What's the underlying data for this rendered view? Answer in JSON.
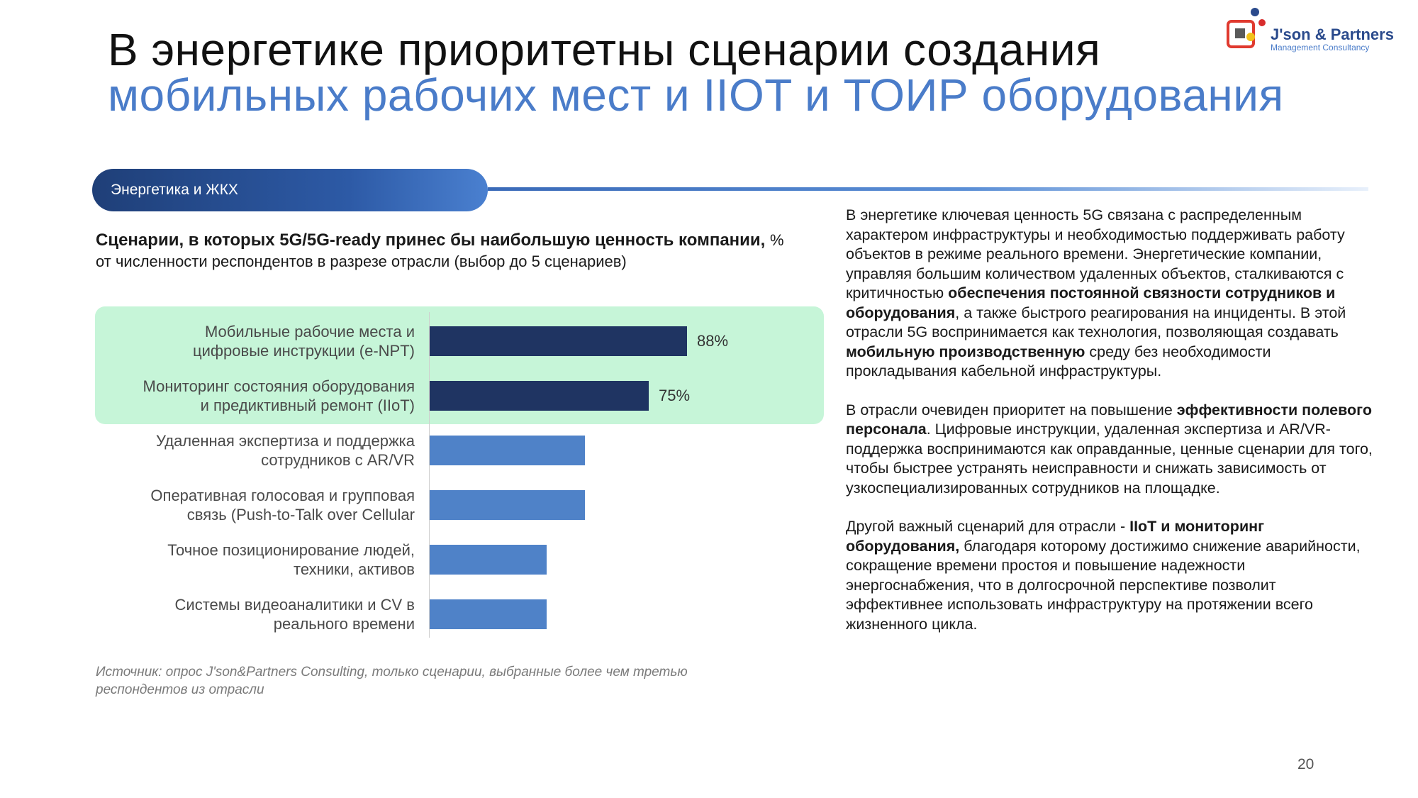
{
  "slide": {
    "title_line1": "В энергетике приоритетны сценарии создания",
    "title_line2": "мобильных рабочих мест и IIOT и ТОИР оборудования",
    "logo": {
      "name": "J'son & Partners",
      "subtitle": "Management Consultancy",
      "colors": {
        "square": "#e03a2f",
        "dot_blue": "#2a4a8c",
        "dot_yellow": "#f2c21b",
        "dot_red": "#d82c2c"
      }
    },
    "section_label": "Энергетика и ЖКХ",
    "chart_heading_bold": "Сценарии, в которых 5G/5G-ready принес бы наибольшую ценность компании,",
    "chart_heading_note": "% от численности респондентов в разрезе отрасли (выбор до 5 сценариев)",
    "source_note": "Источник: опрос J'son&Partners Consulting, только сценарии, выбранные более чем третью респондентов из отрасли",
    "page_number": "20",
    "colors": {
      "dark_bar": "#1f3462",
      "light_bar": "#4f82c8",
      "highlight": "#c6f5d8",
      "title_accent": "#4a7cc9"
    }
  },
  "chart_data": {
    "type": "bar",
    "orientation": "horizontal",
    "categories": [
      [
        "Мобильные рабочие места и",
        "цифровые инструкции (e-NPT)"
      ],
      [
        "Мониторинг состояния оборудования",
        "и предиктивный ремонт (IIoT)"
      ],
      [
        "Удаленная экспертиза и поддержка",
        "сотрудников с AR/VR"
      ],
      [
        "Оперативная голосовая и групповая",
        "связь (Push-to-Talk over Cellular"
      ],
      [
        "Точное позиционирование людей,",
        "техники, активов"
      ],
      [
        "Системы видеоаналитики и CV в",
        "реального времени"
      ]
    ],
    "values": [
      88,
      75,
      53,
      53,
      40,
      40
    ],
    "value_labels": [
      "88%",
      "75%",
      "",
      "",
      "",
      ""
    ],
    "highlighted": [
      true,
      true,
      false,
      false,
      false,
      false
    ],
    "xlim": [
      0,
      100
    ],
    "title": "Сценарии, в которых 5G/5G-ready принес бы наибольшую ценность компании,",
    "xlabel": "",
    "ylabel": "",
    "grid": false
  },
  "right_text": {
    "paragraphs": [
      [
        {
          "t": "В энергетике ключевая ценность 5G связана с распределенным характером инфраструктуры и необходимостью поддерживать работу объектов в режиме реального времени.  Энергетические компании, управляя большим количеством удаленных объектов, сталкиваются с критичностью ",
          "b": false
        },
        {
          "t": "обеспечения постоянной связности сотрудников и оборудования",
          "b": true
        },
        {
          "t": ", а также быстрого реагирования на инциденты.  В этой отрасли 5G воспринимается как технология, позволяющая создавать ",
          "b": false
        },
        {
          "t": "мобильную производственную",
          "b": true
        },
        {
          "t": " среду без необходимости прокладывания кабельной инфраструктуры.",
          "b": false
        }
      ],
      [
        {
          "t": "В отрасли очевиден приоритет на повышение ",
          "b": false
        },
        {
          "t": "эффективности полевого персонала",
          "b": true
        },
        {
          "t": ". Цифровые инструкции, удаленная экспертиза и AR/VR-поддержка воспринимаются как оправданные, ценные сценарии для того, чтобы  быстрее устранять неисправности и снижать зависимость от узкоспециализированных сотрудников на площадке.",
          "b": false
        }
      ],
      [
        {
          "t": "Другой важный сценарий для отрасли - ",
          "b": false
        },
        {
          "t": "IIoT и мониторинг оборудования,",
          "b": true
        },
        {
          "t": " благодаря которому достижимо снижение аварийности, сокращение времени простоя и повышение надежности энергоснабжения, что в долгосрочной перспективе позволит эффективнее использовать инфраструктуру на протяжении всего жизненного цикла.",
          "b": false
        }
      ]
    ]
  }
}
